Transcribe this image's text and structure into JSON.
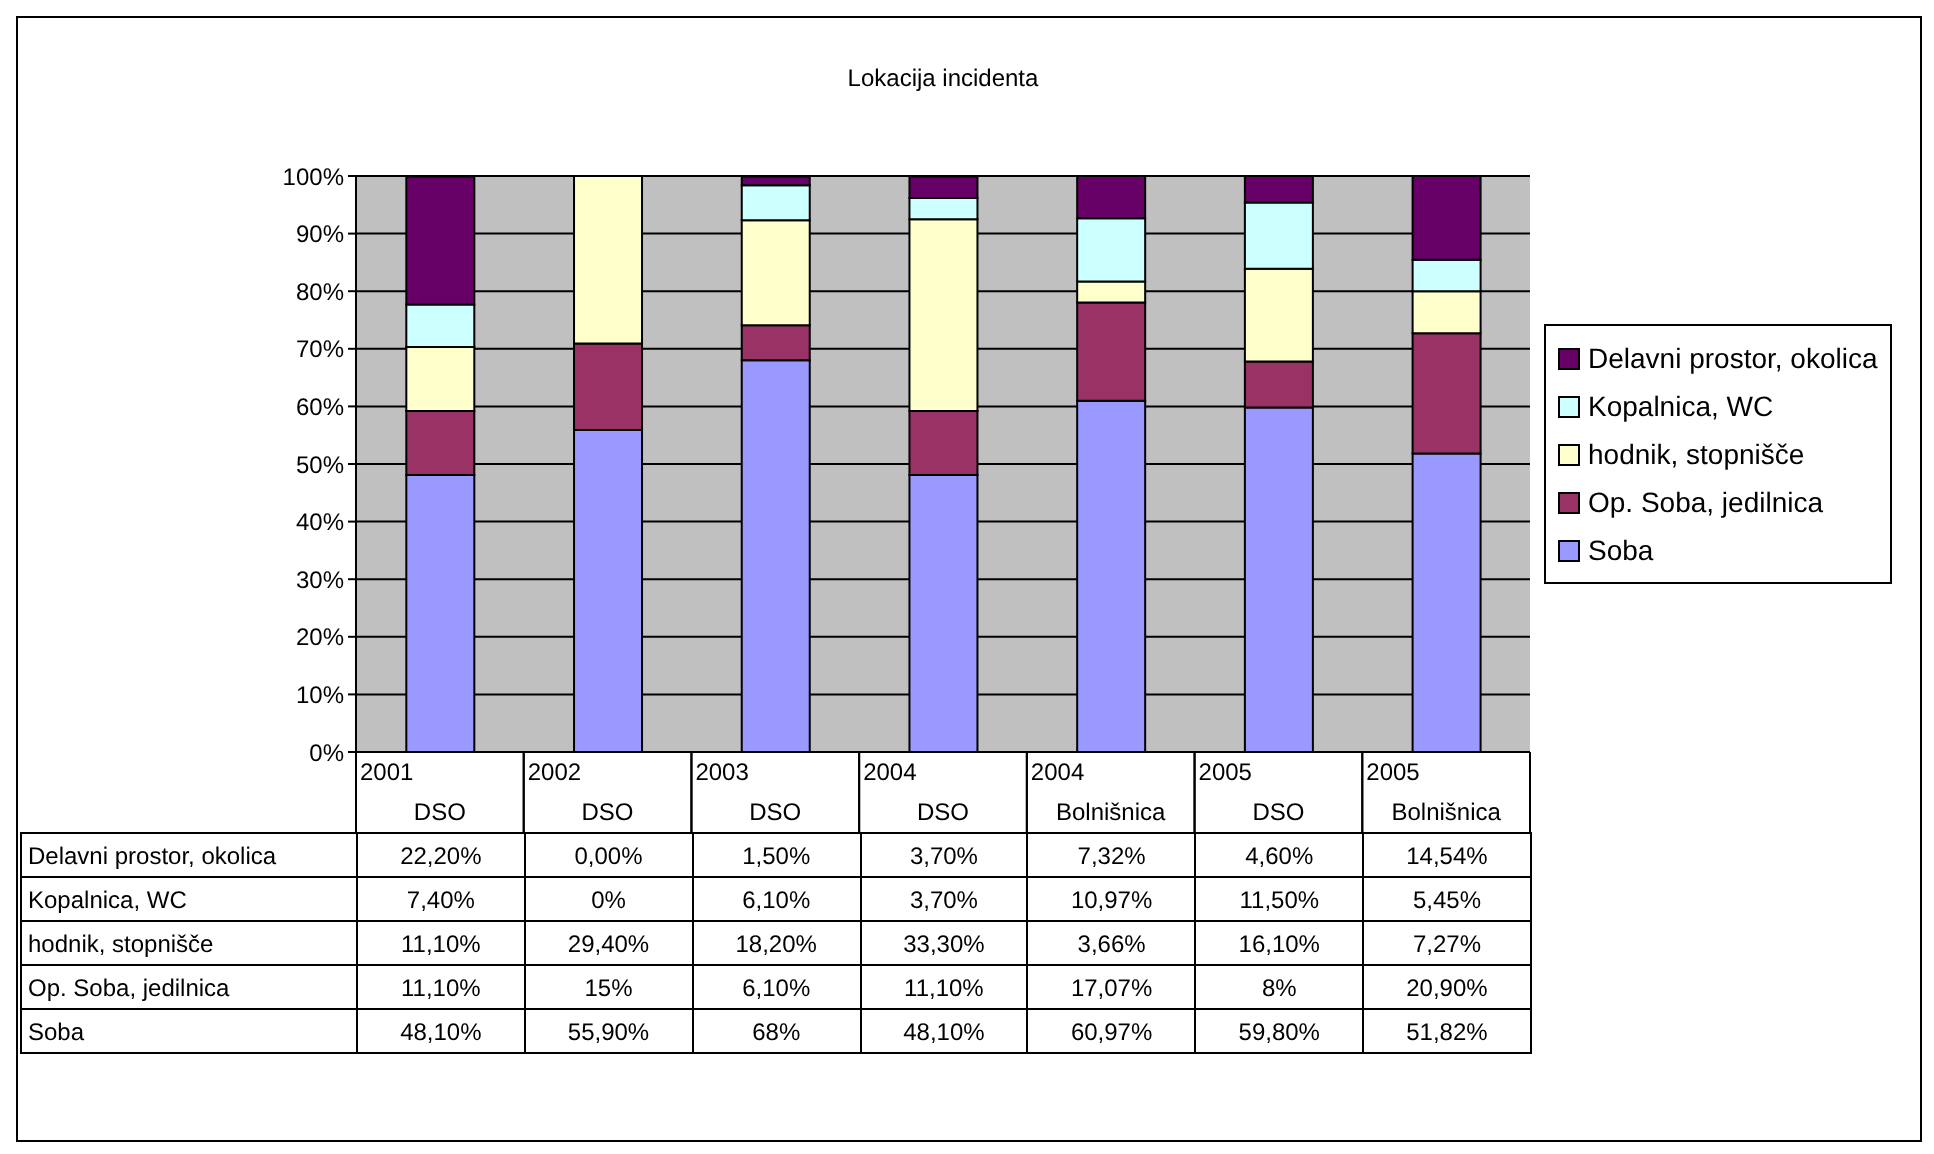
{
  "chart_data": {
    "type": "bar",
    "title": "Lokacija incidenta",
    "stacked": true,
    "grid": "y",
    "legend": "right",
    "categories": [
      "2001\nDSO",
      "2002\nDSO",
      "2003\nDSO",
      "2004\nDSO",
      "2004\nBolnišnica",
      "2005\nDSO",
      "2005\nBolnišnica"
    ],
    "ylim": [
      0,
      100
    ],
    "yticks": [
      {
        "value": 0,
        "label": "0%"
      },
      {
        "value": 10,
        "label": "10%"
      },
      {
        "value": 20,
        "label": "20%"
      },
      {
        "value": 30,
        "label": "30%"
      },
      {
        "value": 40,
        "label": "40%"
      },
      {
        "value": 50,
        "label": "50%"
      },
      {
        "value": 60,
        "label": "60%"
      },
      {
        "value": 70,
        "label": "70%"
      },
      {
        "value": 80,
        "label": "80%"
      },
      {
        "value": 90,
        "label": "90%"
      },
      {
        "value": 100,
        "label": "100%"
      }
    ],
    "series": [
      {
        "name": "Soba",
        "color": "#9999ff",
        "values": [
          48.1,
          55.9,
          68,
          48.1,
          60.97,
          59.8,
          51.82
        ],
        "value_labels": [
          "48,10%",
          "55,90%",
          "68%",
          "48,10%",
          "60,97%",
          "59,80%",
          "51,82%"
        ]
      },
      {
        "name": "Op. Soba, jedilnica",
        "color": "#993366",
        "values": [
          11.1,
          15,
          6.1,
          11.1,
          17.07,
          8,
          20.9
        ],
        "value_labels": [
          "11,10%",
          "15%",
          "6,10%",
          "11,10%",
          "17,07%",
          "8%",
          "20,90%"
        ]
      },
      {
        "name": "hodnik, stopnišče",
        "color": "#ffffcc",
        "values": [
          11.1,
          29.4,
          18.2,
          33.3,
          3.66,
          16.1,
          7.27
        ],
        "value_labels": [
          "11,10%",
          "29,40%",
          "18,20%",
          "33,30%",
          "3,66%",
          "16,10%",
          "7,27%"
        ]
      },
      {
        "name": "Kopalnica, WC",
        "color": "#ccffff",
        "values": [
          7.4,
          0,
          6.1,
          3.7,
          10.97,
          11.5,
          5.45
        ],
        "value_labels": [
          "7,40%",
          "0%",
          "6,10%",
          "3,70%",
          "10,97%",
          "11,50%",
          "5,45%"
        ]
      },
      {
        "name": "Delavni prostor, okolica",
        "color": "#660066",
        "values": [
          22.2,
          0,
          1.5,
          3.7,
          7.32,
          4.6,
          14.54
        ],
        "value_labels": [
          "22,20%",
          "0,00%",
          "1,50%",
          "3,70%",
          "7,32%",
          "4,60%",
          "14,54%"
        ]
      }
    ]
  }
}
